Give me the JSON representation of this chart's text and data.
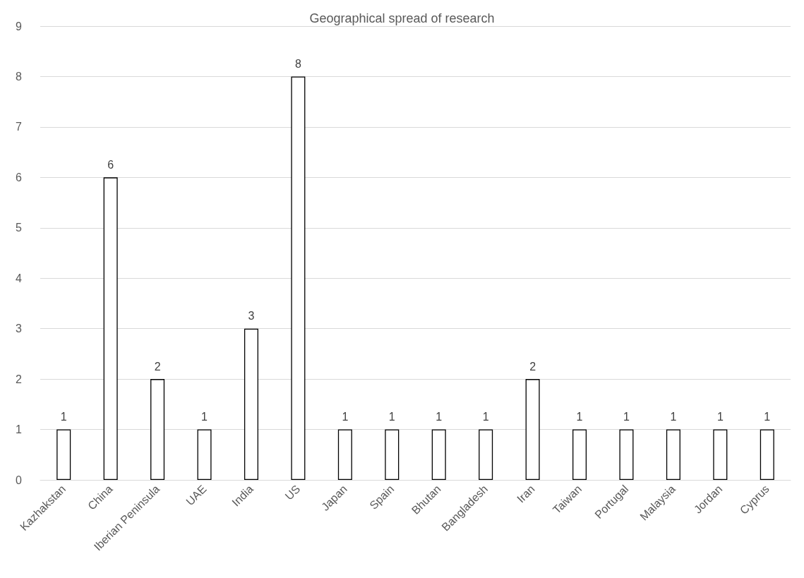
{
  "chart_data": {
    "type": "bar",
    "title": "Geographical spread of research",
    "categories": [
      "Kazhakstan",
      "China",
      "Iberian Peninsula",
      "UAE",
      "India",
      "US",
      "Japan",
      "Spain",
      "Bhutan",
      "Bangladesh",
      "Iran",
      "Taiwan",
      "Portugal",
      "Malaysia",
      "Jordan",
      "Cyprus"
    ],
    "values": [
      1,
      6,
      2,
      1,
      3,
      8,
      1,
      1,
      1,
      1,
      2,
      1,
      1,
      1,
      1,
      1
    ],
    "color": "#ffffff",
    "ylim": [
      0,
      9
    ],
    "yticks": [
      0,
      1,
      2,
      3,
      4,
      5,
      6,
      7,
      8,
      9
    ],
    "grid": "y",
    "data_labels": true
  }
}
